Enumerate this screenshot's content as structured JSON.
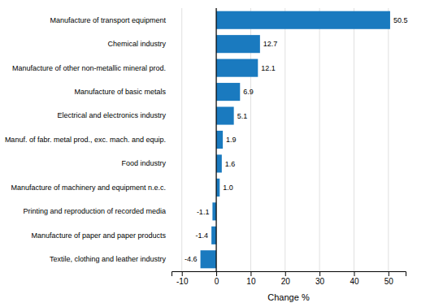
{
  "chart_data": {
    "type": "bar",
    "orientation": "horizontal",
    "categories": [
      "Textile, clothing and leather industry",
      "Manufacture of paper and paper products",
      "Printing and reproduction of recorded media",
      "Manufacture of machinery and equipment n.e.c.",
      "Food industry",
      "Manuf. of fabr. metal prod., exc. mach. and equip.",
      "Electrical and electronics industry",
      "Manufacture of basic metals",
      "Manufacture of other non-metallic mineral prod.",
      "Chemical industry",
      "Manufacture of transport equipment"
    ],
    "values": [
      -4.6,
      -1.4,
      -1.1,
      1.0,
      1.6,
      1.9,
      5.1,
      6.9,
      12.1,
      12.7,
      50.5
    ],
    "value_labels": [
      "-4.6",
      "-1.4",
      "-1.1",
      "1.0",
      "1.6",
      "1.9",
      "5.1",
      "6.9",
      "12.1",
      "12.7",
      "50.5"
    ],
    "data_labels": true,
    "color": "#1a7abf",
    "xlabel": "Change %",
    "xlim": [
      -13,
      55
    ],
    "xticks": [
      -10,
      0,
      10,
      20,
      30,
      40,
      50
    ],
    "grid": true
  }
}
